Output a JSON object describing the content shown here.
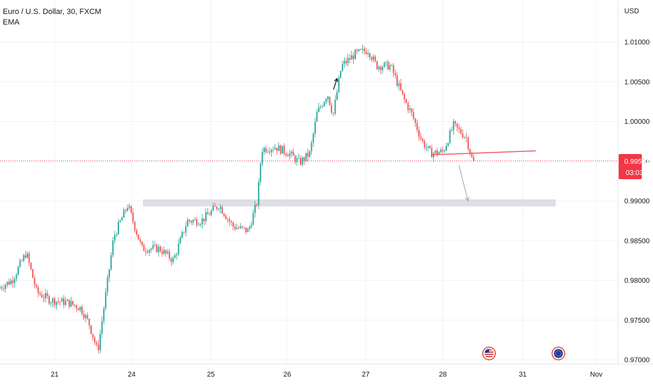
{
  "header": {
    "title": "Euro / U.S. Dollar, 30, FXCM",
    "indicator": "EMA"
  },
  "price_axis": {
    "currency": "USD",
    "ticks": [
      "1.01000",
      "1.00500",
      "1.00000",
      "0.99500",
      "0.99000",
      "0.98500",
      "0.98000",
      "0.97500",
      "0.97000"
    ],
    "current_price": "0.99503",
    "countdown": "03:03"
  },
  "time_axis": {
    "labels": [
      "21",
      "24",
      "25",
      "26",
      "27",
      "28",
      "31",
      "Nov"
    ]
  },
  "colors": {
    "up": "#26a69a",
    "down": "#ef5350",
    "price_tag": "#f23645",
    "zone": "#d1d4dc",
    "trendline": "#f7525f"
  },
  "events": [
    "us-flag-icon",
    "eu-flag-icon"
  ],
  "chart_data": {
    "type": "candlestick",
    "title": "Euro / U.S. Dollar, 30, FXCM",
    "ylabel": "USD",
    "ylim": [
      0.9697,
      1.0157
    ],
    "grid": true,
    "x_labels": [
      "21",
      "24",
      "25",
      "26",
      "27",
      "28",
      "31",
      "Nov"
    ],
    "path_keypoints": [
      {
        "t": 0,
        "p": 0.979
      },
      {
        "t": 20,
        "p": 0.98
      },
      {
        "t": 40,
        "p": 0.9835
      },
      {
        "t": 55,
        "p": 0.9785
      },
      {
        "t": 75,
        "p": 0.9775
      },
      {
        "t": 100,
        "p": 0.9772
      },
      {
        "t": 118,
        "p": 0.9765
      },
      {
        "t": 130,
        "p": 0.9745
      },
      {
        "t": 142,
        "p": 0.971
      },
      {
        "t": 165,
        "p": 0.9855
      },
      {
        "t": 185,
        "p": 0.9895
      },
      {
        "t": 205,
        "p": 0.984
      },
      {
        "t": 230,
        "p": 0.984
      },
      {
        "t": 250,
        "p": 0.9825
      },
      {
        "t": 270,
        "p": 0.9875
      },
      {
        "t": 290,
        "p": 0.9875
      },
      {
        "t": 315,
        "p": 0.9895
      },
      {
        "t": 335,
        "p": 0.9868
      },
      {
        "t": 357,
        "p": 0.9862
      },
      {
        "t": 370,
        "p": 0.99
      },
      {
        "t": 376,
        "p": 0.9965
      },
      {
        "t": 395,
        "p": 0.9968
      },
      {
        "t": 415,
        "p": 0.996
      },
      {
        "t": 430,
        "p": 0.9948
      },
      {
        "t": 445,
        "p": 0.996
      },
      {
        "t": 455,
        "p": 1.001
      },
      {
        "t": 470,
        "p": 1.0035
      },
      {
        "t": 478,
        "p": 1.0008
      },
      {
        "t": 490,
        "p": 1.007
      },
      {
        "t": 510,
        "p": 1.0085
      },
      {
        "t": 528,
        "p": 1.009
      },
      {
        "t": 540,
        "p": 1.007
      },
      {
        "t": 560,
        "p": 1.007
      },
      {
        "t": 578,
        "p": 1.003
      },
      {
        "t": 590,
        "p": 1.001
      },
      {
        "t": 605,
        "p": 0.9975
      },
      {
        "t": 617,
        "p": 0.996
      },
      {
        "t": 635,
        "p": 0.9962
      },
      {
        "t": 650,
        "p": 0.9995
      },
      {
        "t": 668,
        "p": 0.998
      },
      {
        "t": 677,
        "p": 0.995
      }
    ],
    "last_price": 0.99503,
    "annotations": {
      "support_zone": {
        "from": 0.9893,
        "to": 0.9902
      },
      "trendline": [
        {
          "t": 615,
          "p": 0.9958
        },
        {
          "t": 765,
          "p": 0.9963
        }
      ],
      "down_arrow": [
        {
          "t": 655,
          "p": 0.9945
        },
        {
          "t": 668,
          "p": 0.99
        }
      ],
      "up_arrow_note": [
        {
          "t": 476,
          "p": 1.004
        },
        {
          "t": 481,
          "p": 1.0054
        }
      ]
    }
  }
}
